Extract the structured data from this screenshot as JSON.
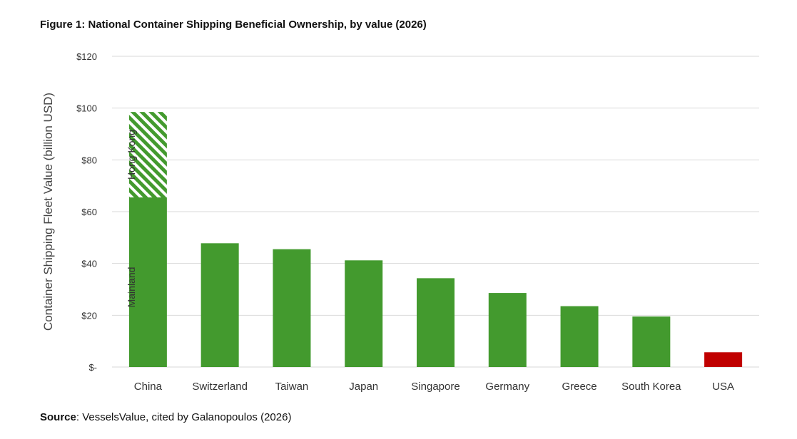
{
  "title": "Figure 1: National Container Shipping Beneficial Ownership, by value (2026)",
  "source": {
    "label": "Source",
    "text": ": VesselsValue, cited by Galanopoulos (2026)"
  },
  "colors": {
    "bar": "#439A2E",
    "highlight": "#C00000",
    "hatch": "#439A2E",
    "grid": "#D9D9D9"
  },
  "chart_data": {
    "type": "bar",
    "ylabel": "Container Shipping  Fleet Value (billion USD)",
    "xlabel": "",
    "ylim": [
      0,
      120
    ],
    "yticks": [
      0,
      20,
      40,
      60,
      80,
      100,
      120
    ],
    "ytick_labels": [
      "$-",
      "$20",
      "$40",
      "$60",
      "$80",
      "$100",
      "$120"
    ],
    "categories": [
      "China",
      "Switzerland",
      "Taiwan",
      "Japan",
      "Singapore",
      "Germany",
      "Greece",
      "South Korea",
      "USA"
    ],
    "values": [
      98.5,
      47.8,
      45.5,
      41.2,
      34.3,
      28.6,
      23.5,
      19.5,
      5.7
    ],
    "highlight_category": "USA",
    "grid": true,
    "stacked_segments": [
      {
        "category": "China",
        "name": "Mainland",
        "value": 65.5,
        "style": "solid"
      },
      {
        "category": "China",
        "name": "Hong Kong",
        "value": 33.0,
        "style": "hatched"
      }
    ]
  }
}
